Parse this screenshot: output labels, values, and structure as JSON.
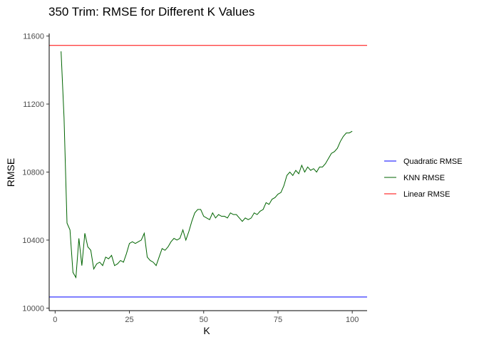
{
  "chart_data": {
    "type": "line",
    "title": "350 Trim: RMSE for Different K Values",
    "xlabel": "K",
    "ylabel": "RMSE",
    "xlim": [
      -2,
      105
    ],
    "ylim": [
      9985,
      11615
    ],
    "x_ticks": [
      0,
      25,
      50,
      75,
      100
    ],
    "y_ticks": [
      10000,
      10400,
      10800,
      11200,
      11600
    ],
    "grid": false,
    "legend_position": "right",
    "legend": [
      {
        "label": "Quadratic RMSE",
        "color": "#0000ff"
      },
      {
        "label": "KNN RMSE",
        "color": "#006400"
      },
      {
        "label": "Linear RMSE",
        "color": "#ff0000"
      }
    ],
    "hlines": [
      {
        "name": "Linear RMSE",
        "value": 11545,
        "color": "#ff0000"
      },
      {
        "name": "Quadratic RMSE",
        "value": 10065,
        "color": "#0000ff"
      }
    ],
    "series": [
      {
        "name": "KNN RMSE",
        "color": "#006400",
        "x": [
          2,
          3,
          4,
          5,
          6,
          7,
          8,
          9,
          10,
          11,
          12,
          13,
          14,
          15,
          16,
          17,
          18,
          19,
          20,
          21,
          22,
          23,
          24,
          25,
          26,
          27,
          28,
          29,
          30,
          31,
          32,
          33,
          34,
          35,
          36,
          37,
          38,
          39,
          40,
          41,
          42,
          43,
          44,
          45,
          46,
          47,
          48,
          49,
          50,
          51,
          52,
          53,
          54,
          55,
          56,
          57,
          58,
          59,
          60,
          61,
          62,
          63,
          64,
          65,
          66,
          67,
          68,
          69,
          70,
          71,
          72,
          73,
          74,
          75,
          76,
          77,
          78,
          79,
          80,
          81,
          82,
          83,
          84,
          85,
          86,
          87,
          88,
          89,
          90,
          91,
          92,
          93,
          94,
          95,
          96,
          97,
          98,
          99,
          100
        ],
        "values": [
          11510,
          11120,
          10500,
          10460,
          10210,
          10180,
          10410,
          10250,
          10440,
          10360,
          10340,
          10230,
          10260,
          10270,
          10250,
          10300,
          10290,
          10310,
          10250,
          10260,
          10280,
          10270,
          10320,
          10380,
          10390,
          10380,
          10390,
          10400,
          10440,
          10300,
          10280,
          10270,
          10250,
          10300,
          10350,
          10340,
          10360,
          10390,
          10410,
          10400,
          10410,
          10460,
          10400,
          10450,
          10510,
          10560,
          10580,
          10580,
          10540,
          10530,
          10520,
          10560,
          10530,
          10550,
          10540,
          10540,
          10530,
          10560,
          10550,
          10550,
          10530,
          10510,
          10530,
          10520,
          10530,
          10560,
          10550,
          10570,
          10580,
          10620,
          10610,
          10640,
          10650,
          10670,
          10680,
          10720,
          10780,
          10800,
          10780,
          10810,
          10790,
          10840,
          10800,
          10830,
          10810,
          10820,
          10800,
          10830,
          10830,
          10850,
          10880,
          10910,
          10920,
          10940,
          10980,
          11010,
          11030,
          11030,
          11040
        ]
      }
    ]
  }
}
